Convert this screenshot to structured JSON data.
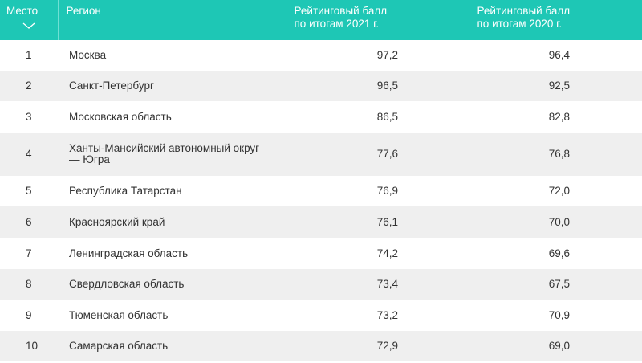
{
  "header": {
    "place": "Место",
    "region": "Регион",
    "score_2021_line1": "Рейтинговый балл",
    "score_2021_line2": "по итогам 2021 г.",
    "score_2020_line1": "Рейтинговый балл",
    "score_2020_line2": "по итогам 2020 г.",
    "sort_icon": "chevron-down-icon"
  },
  "rows": [
    {
      "place": "1",
      "region": "Москва",
      "s21": "97,2",
      "s20": "96,4"
    },
    {
      "place": "2",
      "region": "Санкт-Петербург",
      "s21": "96,5",
      "s20": "92,5"
    },
    {
      "place": "3",
      "region": "Московская область",
      "s21": "86,5",
      "s20": "82,8"
    },
    {
      "place": "4",
      "region": "Ханты-Мансийский автономный округ",
      "region2": "— Югра",
      "s21": "77,6",
      "s20": "76,8"
    },
    {
      "place": "5",
      "region": "Республика Татарстан",
      "s21": "76,9",
      "s20": "72,0"
    },
    {
      "place": "6",
      "region": "Красноярский край",
      "s21": "76,1",
      "s20": "70,0"
    },
    {
      "place": "7",
      "region": "Ленинградская область",
      "s21": "74,2",
      "s20": "69,6"
    },
    {
      "place": "8",
      "region": "Свердловская область",
      "s21": "73,4",
      "s20": "67,5"
    },
    {
      "place": "9",
      "region": "Тюменская область",
      "s21": "73,2",
      "s20": "70,9"
    },
    {
      "place": "10",
      "region": "Самарская область",
      "s21": "72,9",
      "s20": "69,0"
    }
  ]
}
